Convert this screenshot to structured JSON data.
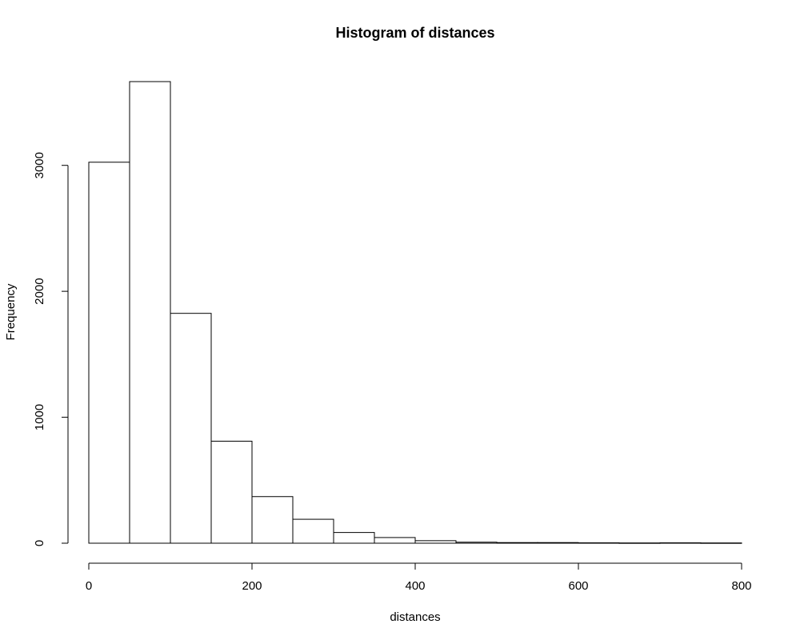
{
  "chart_data": {
    "type": "bar",
    "title": "Histogram of distances",
    "xlabel": "distances",
    "ylabel": "Frequency",
    "bin_edges": [
      0,
      50,
      100,
      150,
      200,
      250,
      300,
      350,
      400,
      450,
      500,
      550,
      600,
      650,
      700,
      750,
      800
    ],
    "values": [
      3025,
      3665,
      1825,
      810,
      370,
      190,
      85,
      45,
      20,
      8,
      5,
      5,
      3,
      2,
      3,
      2
    ],
    "xlim": [
      0,
      800
    ],
    "ylim": [
      0,
      3665
    ],
    "x_ticks": [
      0,
      200,
      400,
      600,
      800
    ],
    "y_ticks": [
      0,
      1000,
      2000,
      3000
    ],
    "grid": false,
    "legend": "none"
  }
}
